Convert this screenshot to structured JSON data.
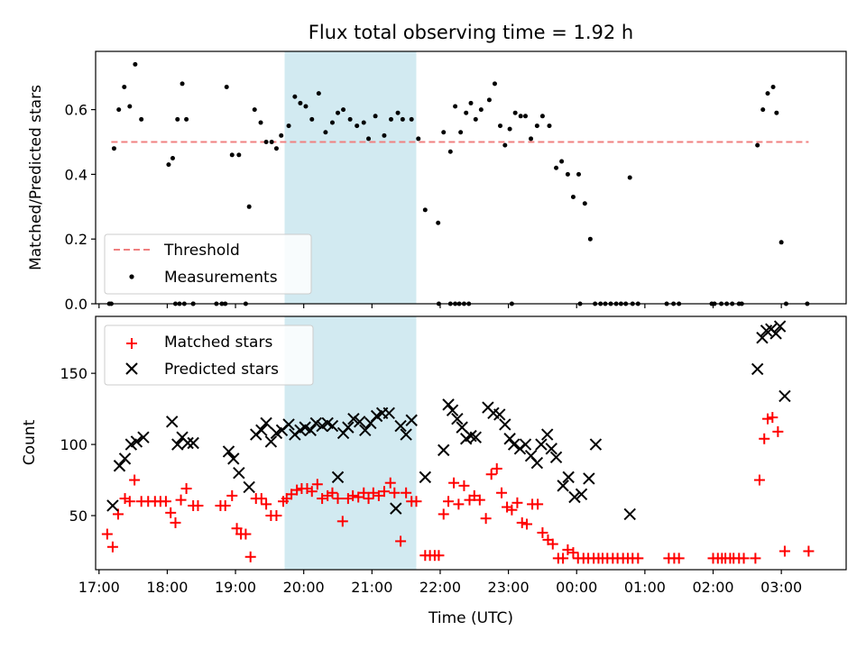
{
  "chart_data": [
    {
      "type": "scatter",
      "title": "Flux total observing time = 1.92 h",
      "xlabel": "",
      "ylabel": "Matched/Predicted stars",
      "ylim": [
        0,
        0.78
      ],
      "yticks": [
        "0.0",
        "0.2",
        "0.4",
        "0.6"
      ],
      "ytick_values": [
        0,
        0.2,
        0.4,
        0.6
      ],
      "xlim": [
        16.95,
        27.95
      ],
      "highlight_span": [
        19.72,
        21.65
      ],
      "threshold": {
        "name": "Threshold",
        "value": 0.5,
        "x_range": [
          17.18,
          27.4
        ],
        "color": "#f08080"
      },
      "legend": {
        "placement": "lower-left",
        "entries": [
          "Threshold",
          "Measurements"
        ]
      },
      "series": [
        {
          "name": "Measurements",
          "color": "#000000",
          "x": [
            17.15,
            17.22,
            17.29,
            17.37,
            17.45,
            17.53,
            17.62,
            18.02,
            18.08,
            18.15,
            18.22,
            18.28,
            18.38,
            18.87,
            18.95,
            19.05,
            19.2,
            19.28,
            19.37,
            19.45,
            19.53,
            19.6,
            19.67,
            19.78,
            19.87,
            19.95,
            20.03,
            20.12,
            20.22,
            20.32,
            20.42,
            20.5,
            20.58,
            20.68,
            20.78,
            20.88,
            20.95,
            21.05,
            21.18,
            21.28,
            21.38,
            21.45,
            21.58,
            21.68,
            21.78,
            21.97,
            22.05,
            22.15,
            22.22,
            22.3,
            22.38,
            22.45,
            22.52,
            22.6,
            22.72,
            22.8,
            22.88,
            22.95,
            23.02,
            23.1,
            23.18,
            23.25,
            23.33,
            23.42,
            23.5,
            23.6,
            23.7,
            23.78,
            23.87,
            23.95,
            24.03,
            24.12,
            24.2,
            24.27,
            24.78,
            26.65,
            26.73,
            26.8,
            26.88,
            26.93,
            27.0,
            27.07
          ],
          "y": [
            0.0,
            0.48,
            0.6,
            0.67,
            0.61,
            0.74,
            0.57,
            0.43,
            0.45,
            0.57,
            0.68,
            0.57,
            0.0,
            0.67,
            0.46,
            0.46,
            0.3,
            0.6,
            0.56,
            0.5,
            0.5,
            0.48,
            0.52,
            0.55,
            0.64,
            0.62,
            0.61,
            0.57,
            0.65,
            0.53,
            0.56,
            0.59,
            0.6,
            0.57,
            0.55,
            0.56,
            0.51,
            0.58,
            0.52,
            0.57,
            0.59,
            0.57,
            0.57,
            0.51,
            0.29,
            0.25,
            0.53,
            0.47,
            0.61,
            0.53,
            0.59,
            0.62,
            0.57,
            0.6,
            0.63,
            0.68,
            0.55,
            0.49,
            0.54,
            0.59,
            0.58,
            0.58,
            0.51,
            0.55,
            0.58,
            0.55,
            0.42,
            0.44,
            0.4,
            0.33,
            0.4,
            0.31,
            0.2,
            0.0,
            0.39,
            0.49,
            0.6,
            0.65,
            0.67,
            0.59,
            0.19,
            0.0
          ],
          "zeros_x": [
            17.18,
            18.12,
            18.18,
            18.25,
            18.38,
            18.72,
            18.8,
            18.85,
            19.15,
            21.98,
            22.15,
            22.22,
            22.28,
            22.35,
            22.42,
            23.05,
            24.05,
            24.35,
            24.42,
            24.5,
            24.58,
            24.65,
            24.72,
            24.82,
            24.9,
            25.32,
            25.42,
            25.5,
            25.98,
            26.02,
            26.12,
            26.2,
            26.28,
            26.38,
            26.42,
            27.38
          ]
        }
      ]
    },
    {
      "type": "scatter",
      "title": "",
      "xlabel": "Time (UTC)",
      "ylabel": "Count",
      "ylim": [
        12,
        190
      ],
      "yticks": [
        "50",
        "100",
        "150"
      ],
      "ytick_values": [
        50,
        100,
        150
      ],
      "xlim": [
        16.95,
        27.95
      ],
      "xticks": [
        "17:00",
        "18:00",
        "19:00",
        "20:00",
        "21:00",
        "22:00",
        "23:00",
        "00:00",
        "01:00",
        "02:00",
        "03:00"
      ],
      "xtick_values": [
        17,
        18,
        19,
        20,
        21,
        22,
        23,
        24,
        25,
        26,
        27
      ],
      "highlight_span": [
        19.72,
        21.65
      ],
      "legend": {
        "placement": "upper-left",
        "entries": [
          "Matched stars",
          "Predicted stars"
        ]
      },
      "series": [
        {
          "name": "Matched stars",
          "color": "#ff0000",
          "marker": "plus",
          "x": [
            17.12,
            17.2,
            17.28,
            17.38,
            17.45,
            17.52,
            17.62,
            17.72,
            17.82,
            17.9,
            17.98,
            18.05,
            18.12,
            18.2,
            18.28,
            18.38,
            18.45,
            18.78,
            18.85,
            18.95,
            19.02,
            19.08,
            19.15,
            19.22,
            19.3,
            19.38,
            19.45,
            19.52,
            19.6,
            19.7,
            19.75,
            19.82,
            19.9,
            19.97,
            20.05,
            20.12,
            20.2,
            20.27,
            20.35,
            20.42,
            20.5,
            20.57,
            20.65,
            20.72,
            20.8,
            20.88,
            20.95,
            21.02,
            21.1,
            21.18,
            21.27,
            21.33,
            21.42,
            21.5,
            21.58,
            21.65,
            21.78,
            21.85,
            21.92,
            21.98,
            22.05,
            22.12,
            22.2,
            22.27,
            22.35,
            22.43,
            22.5,
            22.58,
            22.67,
            22.75,
            22.83,
            22.9,
            22.98,
            23.05,
            23.13,
            23.2,
            23.27,
            23.35,
            23.43,
            23.5,
            23.58,
            23.65,
            23.73,
            23.8,
            23.87,
            23.95,
            24.02,
            24.1,
            24.17,
            24.25,
            24.32,
            24.38,
            24.45,
            24.53,
            24.6,
            24.68,
            24.75,
            24.82,
            24.9,
            25.35,
            25.43,
            25.5,
            26.0,
            26.07,
            26.13,
            26.18,
            26.25,
            26.3,
            26.38,
            26.45,
            26.62,
            26.68,
            26.75,
            26.8,
            26.87,
            26.95,
            27.05,
            27.4
          ],
          "y": [
            37,
            28,
            51,
            62,
            60,
            75,
            60,
            60,
            60,
            60,
            60,
            52,
            45,
            61,
            69,
            57,
            57,
            57,
            57,
            64,
            41,
            37,
            37,
            21,
            62,
            62,
            58,
            50,
            50,
            60,
            62,
            65,
            68,
            69,
            69,
            67,
            72,
            62,
            64,
            66,
            62,
            46,
            62,
            64,
            63,
            66,
            62,
            66,
            64,
            67,
            73,
            66,
            32,
            66,
            60,
            60,
            22,
            22,
            22,
            22,
            51,
            60,
            73,
            58,
            71,
            61,
            64,
            61,
            48,
            79,
            83,
            66,
            56,
            54,
            59,
            45,
            44,
            58,
            58,
            38,
            33,
            30,
            20,
            20,
            26,
            24,
            20,
            20,
            20,
            20,
            20,
            20,
            20,
            20,
            20,
            20,
            20,
            20,
            20,
            20,
            20,
            20,
            20,
            20,
            20,
            20,
            20,
            20,
            20,
            20,
            20,
            75,
            104,
            118,
            119,
            109,
            25,
            25
          ]
        },
        {
          "name": "Predicted stars",
          "color": "#000000",
          "marker": "x",
          "x": [
            17.2,
            17.3,
            17.38,
            17.47,
            17.55,
            17.65,
            18.07,
            18.15,
            18.22,
            18.3,
            18.38,
            18.9,
            18.97,
            19.05,
            19.2,
            19.3,
            19.38,
            19.45,
            19.52,
            19.6,
            19.68,
            19.78,
            19.87,
            19.95,
            20.02,
            20.1,
            20.18,
            20.27,
            20.35,
            20.42,
            20.5,
            20.58,
            20.65,
            20.73,
            20.82,
            20.9,
            20.98,
            21.07,
            21.15,
            21.25,
            21.35,
            21.42,
            21.5,
            21.58,
            21.78,
            22.05,
            22.12,
            22.18,
            22.25,
            22.32,
            22.38,
            22.45,
            22.52,
            22.7,
            22.78,
            22.87,
            22.95,
            23.02,
            23.08,
            23.17,
            23.25,
            23.33,
            23.42,
            23.48,
            23.57,
            23.63,
            23.7,
            23.8,
            23.88,
            23.97,
            24.07,
            24.18,
            24.28,
            24.78,
            26.65,
            26.72,
            26.78,
            26.85,
            26.92,
            26.98,
            27.05
          ],
          "y": [
            57,
            85,
            90,
            100,
            102,
            105,
            116,
            100,
            105,
            101,
            101,
            95,
            90,
            80,
            70,
            107,
            110,
            115,
            102,
            108,
            110,
            114,
            107,
            110,
            112,
            110,
            115,
            113,
            115,
            113,
            77,
            108,
            112,
            118,
            116,
            110,
            115,
            120,
            122,
            122,
            55,
            113,
            107,
            117,
            77,
            96,
            128,
            124,
            118,
            112,
            104,
            106,
            105,
            126,
            122,
            121,
            114,
            104,
            100,
            97,
            100,
            92,
            87,
            100,
            107,
            97,
            91,
            71,
            77,
            63,
            65,
            76,
            100,
            51,
            153,
            175,
            180,
            181,
            178,
            183,
            134
          ]
        }
      ]
    }
  ]
}
